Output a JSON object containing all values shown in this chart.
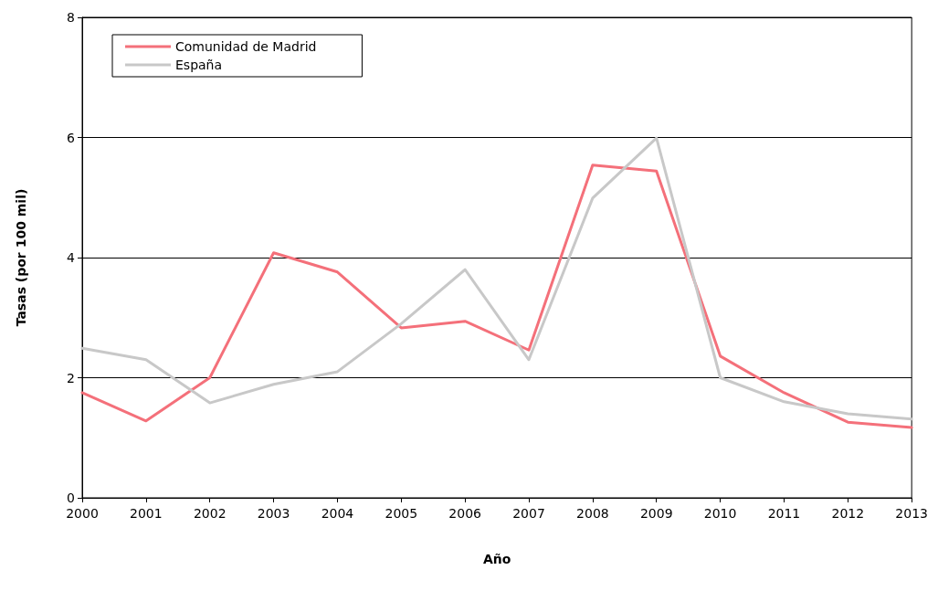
{
  "chart_data": {
    "type": "line",
    "xlabel": "Año",
    "ylabel": "Tasas (por 100 mil)",
    "x": [
      2000,
      2001,
      2002,
      2003,
      2004,
      2005,
      2006,
      2007,
      2008,
      2009,
      2010,
      2011,
      2012,
      2013
    ],
    "series": [
      {
        "name": "Comunidad de Madrid",
        "color": "#f4707a",
        "values": [
          1.75,
          1.28,
          2.0,
          4.08,
          3.76,
          2.83,
          2.94,
          2.46,
          5.54,
          5.44,
          2.36,
          1.75,
          1.26,
          1.17
        ]
      },
      {
        "name": "España",
        "color": "#c8c8c8",
        "values": [
          2.49,
          2.3,
          1.58,
          1.89,
          2.1,
          2.9,
          3.8,
          2.3,
          4.99,
          5.99,
          2.0,
          1.6,
          1.4,
          1.31
        ]
      }
    ],
    "xlim": [
      2000,
      2013
    ],
    "xticks": [
      2000,
      2001,
      2002,
      2003,
      2004,
      2005,
      2006,
      2007,
      2008,
      2009,
      2010,
      2011,
      2012,
      2013
    ],
    "ylim": [
      0,
      8
    ],
    "yticks": [
      0,
      2,
      4,
      6,
      8
    ],
    "grid": "y",
    "legend": "top left",
    "marker": "none",
    "line_style": "solid"
  }
}
